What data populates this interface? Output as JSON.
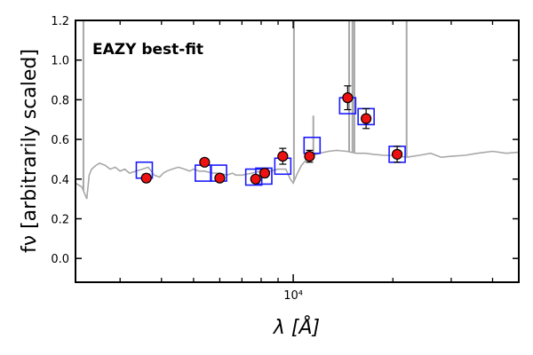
{
  "chart_data": {
    "type": "scatter",
    "annotation": "EAZY best-fit",
    "annotation_color": "#ff0000",
    "xlabel": "λ [Å]",
    "ylabel": "fν [arbitrarily scaled]",
    "xscale": "log",
    "xlim": [
      2200,
      48000
    ],
    "ylim": [
      -0.12,
      1.2
    ],
    "yticks": [
      0.0,
      0.2,
      0.4,
      0.6,
      0.8,
      1.0,
      1.2
    ],
    "ytick_labels": [
      "0.0",
      "0.2",
      "0.4",
      "0.6",
      "0.8",
      "1.0",
      "1.2"
    ],
    "xticks_labeled": [
      10000
    ],
    "xtick_labels": [
      "10⁴"
    ],
    "grid": false,
    "series": [
      {
        "kind": "observed",
        "marker": "red-filled-circle",
        "color": "#ee1111",
        "x": [
          3600,
          5400,
          6000,
          7700,
          8200,
          9300,
          11200,
          14600,
          16600,
          20600
        ],
        "y": [
          0.405,
          0.485,
          0.405,
          0.4,
          0.43,
          0.515,
          0.515,
          0.81,
          0.705,
          0.525
        ],
        "yerr": [
          0.02,
          0.012,
          0.012,
          0.012,
          0.02,
          0.04,
          0.03,
          0.06,
          0.05,
          0.04
        ]
      },
      {
        "kind": "model-bandpass",
        "marker": "blue-open-square",
        "color": "#1a1aff",
        "x": [
          3550,
          5350,
          5950,
          7600,
          8150,
          9300,
          11400,
          14600,
          16600,
          20600
        ],
        "y": [
          0.445,
          0.43,
          0.43,
          0.41,
          0.415,
          0.465,
          0.57,
          0.77,
          0.715,
          0.525
        ]
      },
      {
        "kind": "template-spectrum",
        "line_color": "#a8a8a8",
        "x": [
          2200,
          2300,
          2380,
          2420,
          2460,
          2500,
          2540,
          2600,
          2700,
          2800,
          2900,
          3000,
          3100,
          3200,
          3350,
          3500,
          3650,
          3800,
          3950,
          4050,
          4150,
          4300,
          4500,
          4700,
          4860,
          5000,
          5200,
          5400,
          5700,
          6000,
          6300,
          6560,
          6700,
          7000,
          7500,
          8000,
          8500,
          9000,
          9500,
          9800,
          10000,
          10300,
          10600,
          11000,
          11500,
          12000,
          12800,
          13500,
          14500,
          15500,
          16500,
          17500,
          18800,
          20000,
          22000,
          24000,
          26000,
          28000,
          30000,
          33000,
          36000,
          40000,
          44000,
          48000
        ],
        "y": [
          0.38,
          0.36,
          0.3,
          0.42,
          0.45,
          0.46,
          0.47,
          0.48,
          0.47,
          0.45,
          0.46,
          0.44,
          0.45,
          0.43,
          0.44,
          0.45,
          0.46,
          0.42,
          0.41,
          0.43,
          0.44,
          0.45,
          0.46,
          0.45,
          0.44,
          0.45,
          0.44,
          0.44,
          0.43,
          0.43,
          0.42,
          0.43,
          0.42,
          0.42,
          0.43,
          0.44,
          0.44,
          0.45,
          0.45,
          0.4,
          0.38,
          0.43,
          0.47,
          0.5,
          0.52,
          0.53,
          0.54,
          0.545,
          0.54,
          0.53,
          0.53,
          0.525,
          0.52,
          0.52,
          0.51,
          0.52,
          0.53,
          0.51,
          0.515,
          0.52,
          0.53,
          0.54,
          0.53,
          0.535
        ],
        "emission_lines": [
          {
            "x": 2325,
            "peak": 1.2
          },
          {
            "x": 10050,
            "peak": 1.2
          },
          {
            "x": 11500,
            "peak": 0.72
          },
          {
            "x": 14750,
            "peak": 1.2
          },
          {
            "x": 15100,
            "peak": 1.2
          },
          {
            "x": 15300,
            "peak": 1.2
          },
          {
            "x": 22000,
            "peak": 1.2
          }
        ]
      }
    ]
  }
}
